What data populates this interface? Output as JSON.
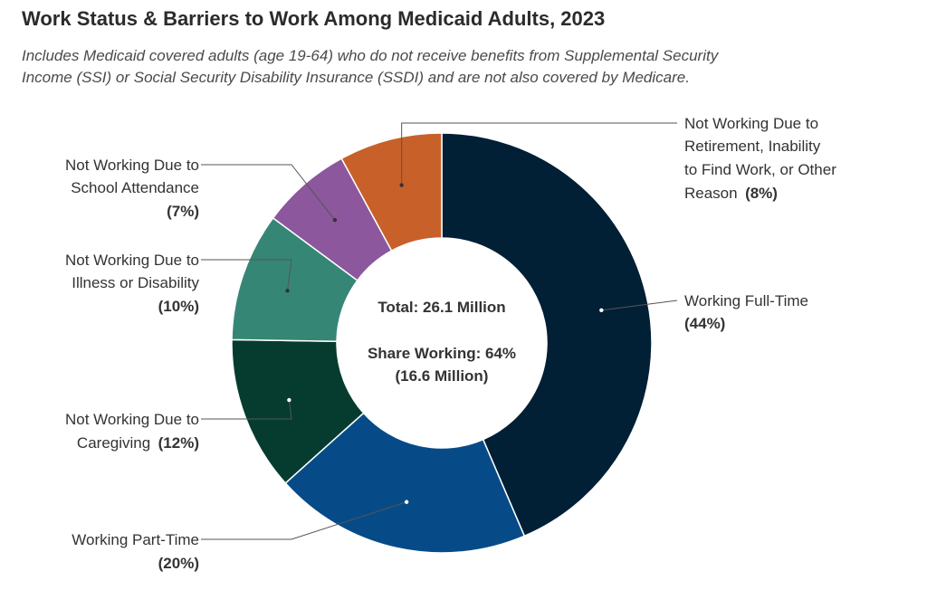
{
  "header": {
    "title": "Work Status & Barriers to Work Among Medicaid Adults, 2023",
    "subtitle_line1": "Includes Medicaid covered adults (age 19-64) who do not receive benefits from Supplemental Security",
    "subtitle_line2": "Income (SSI) or Social Security Disability Insurance (SSDI) and are not also covered by Medicare."
  },
  "center": {
    "total": "Total: 26.1 Million",
    "share": "Share Working: 64%",
    "share_count": "(16.6 Million)"
  },
  "chart_data": {
    "type": "pie",
    "donut": true,
    "title": "Work Status & Barriers to Work Among Medicaid Adults, 2023",
    "slices": [
      {
        "label": "Working Full-Time",
        "value": 44,
        "pct_label": "(44%)",
        "color": "#011f35"
      },
      {
        "label": "Working Part-Time",
        "value": 20,
        "pct_label": "(20%)",
        "color": "#064b87"
      },
      {
        "label": "Not Working Due to Caregiving",
        "value": 12,
        "pct_label": "(12%)",
        "color": "#053c2f"
      },
      {
        "label": "Not Working Due to Illness or Disability",
        "value": 10,
        "pct_label": "(10%)",
        "color": "#368676"
      },
      {
        "label": "Not Working Due to School Attendance",
        "value": 7,
        "pct_label": "(7%)",
        "color": "#8c579c"
      },
      {
        "label": "Not Working Due to Retirement, Inability to Find Work, or Other Reason",
        "value": 8,
        "pct_label": "(8%)",
        "color": "#c8602a"
      }
    ]
  },
  "labels": {
    "full_time": {
      "line1": "Working Full-Time",
      "pct": "(44%)"
    },
    "part_time": {
      "line1": "Working Part-Time",
      "pct": "(20%)"
    },
    "caregiving": {
      "line1": "Not Working Due to",
      "line2": "Caregiving",
      "pct": "(12%)"
    },
    "illness": {
      "line1": "Not Working Due to",
      "line2": "Illness or Disability",
      "pct": "(10%)"
    },
    "school": {
      "line1": "Not Working Due to",
      "line2": "School Attendance",
      "pct": "(7%)"
    },
    "other": {
      "line1": "Not Working Due to",
      "line2": "Retirement, Inability",
      "line3": "to Find Work, or Other",
      "line4": "Reason",
      "pct": "(8%)"
    }
  }
}
